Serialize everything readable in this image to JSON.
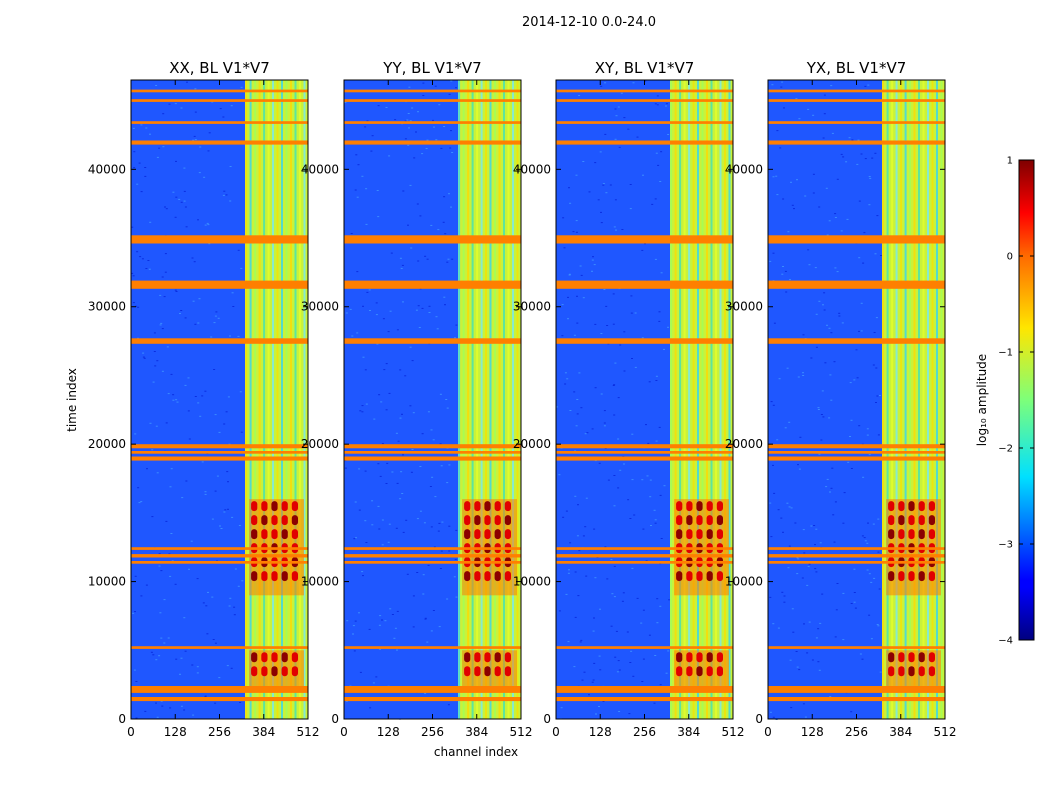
{
  "chart_data": {
    "type": "heatmap",
    "figure_title": "2014-12-10 0.0-24.0",
    "xlabel": "channel index",
    "ylabel": "time index",
    "xlim": [
      0,
      512
    ],
    "ylim": [
      0,
      46500
    ],
    "x_ticks": [
      0,
      128,
      256,
      384,
      512
    ],
    "y_ticks": [
      0,
      10000,
      20000,
      30000,
      40000
    ],
    "colorbar": {
      "label": "log₁₀ amplitude",
      "range": [
        -4,
        1
      ],
      "ticks": [
        1,
        0,
        -1,
        -2,
        -3,
        -4
      ],
      "tick_labels": [
        "1",
        "0",
        "−1",
        "−2",
        "−3",
        "−4"
      ],
      "colormap": "jet"
    },
    "panels": [
      {
        "title": "XX, BL V1*V7"
      },
      {
        "title": "YY, BL V1*V7"
      },
      {
        "title": "XY, BL V1*V7"
      },
      {
        "title": "YX, BL V1*V7"
      }
    ],
    "flagged_rows": [
      [
        1300,
        1600
      ],
      [
        1900,
        2400
      ],
      [
        5100,
        5300
      ],
      [
        11300,
        11500
      ],
      [
        11750,
        12000
      ],
      [
        12300,
        12500
      ],
      [
        18800,
        19100
      ],
      [
        19300,
        19500
      ],
      [
        19700,
        20000
      ],
      [
        27300,
        27700
      ],
      [
        31300,
        31900
      ],
      [
        34600,
        35200
      ],
      [
        41800,
        42100
      ],
      [
        43300,
        43500
      ],
      [
        44900,
        45100
      ],
      [
        45600,
        45800
      ]
    ],
    "flag_color": "#ff7f00",
    "bands": {
      "background_channels": [
        0,
        330
      ],
      "bright_channels": [
        330,
        512
      ],
      "hot_time_ranges": [
        [
          2000,
          5000
        ],
        [
          9000,
          16000
        ]
      ]
    }
  }
}
